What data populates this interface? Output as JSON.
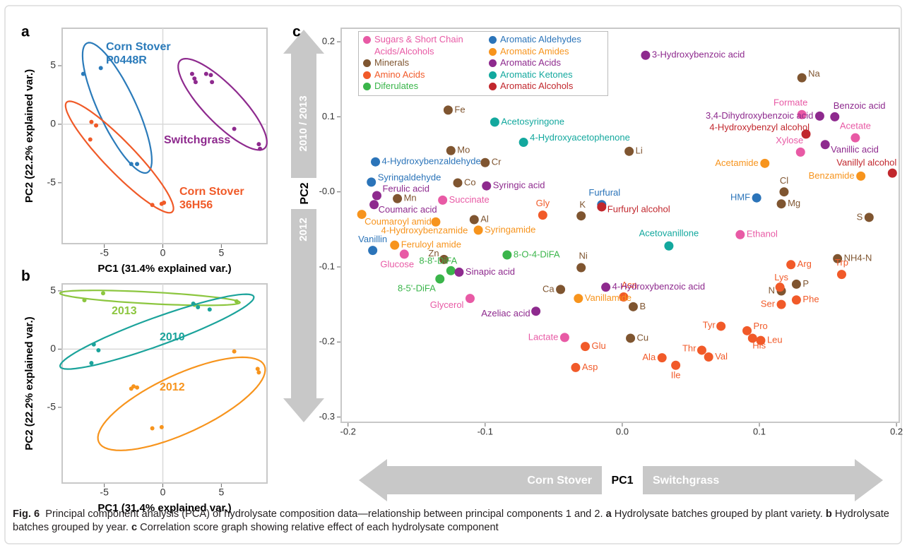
{
  "chart_data": [
    {
      "type": "scatter",
      "panel": "a",
      "xlabel": "PC1 (31.4% explained var.)",
      "ylabel": "PC2 (22.2% explained var.)",
      "xlim": [
        -8.6,
        8.9
      ],
      "ylim": [
        -10.2,
        8.2
      ],
      "xticks": [
        -5,
        0,
        5
      ],
      "yticks": [
        5,
        0,
        -5
      ],
      "zero_lines": true,
      "series": [
        {
          "name": "Corn Stover P0448R",
          "color": "#2b7bba",
          "x": [
            -6.8,
            -5.3,
            -2.7,
            -2.2
          ],
          "values": [
            4.3,
            4.8,
            -3.4,
            -3.4
          ],
          "ellipse": {
            "cx": -3.9,
            "cy": 1.4,
            "rx": 6.1,
            "ry": 1.6,
            "angle": -65
          }
        },
        {
          "name": "Corn Stover 36H56",
          "color": "#f05a28",
          "x": [
            -6.1,
            -5.7,
            -6.2,
            -0.9,
            -0.1,
            0.1
          ],
          "values": [
            0.2,
            -0.1,
            -1.3,
            -6.9,
            -6.8,
            -6.7
          ],
          "ellipse": {
            "cx": -3.7,
            "cy": -2.8,
            "rx": 6.5,
            "ry": 1.3,
            "angle": -46
          }
        },
        {
          "name": "Switchgrass",
          "color": "#8e2a8e",
          "x": [
            2.5,
            2.7,
            2.8,
            3.7,
            4.1,
            4.2,
            6.1,
            8.2,
            8.3
          ],
          "values": [
            4.3,
            3.9,
            3.6,
            4.3,
            4.2,
            3.6,
            -0.4,
            -1.7,
            -2.1
          ],
          "ellipse": {
            "cx": 5.1,
            "cy": 1.7,
            "rx": 5.2,
            "ry": 1.6,
            "angle": -46
          }
        }
      ]
    },
    {
      "type": "scatter",
      "panel": "b",
      "xlabel": "PC1 (31.4% explained var.)",
      "ylabel": "PC2 (22.2% explained var.)",
      "xlim": [
        -8.6,
        8.9
      ],
      "ylim": [
        -11.5,
        5.6
      ],
      "xticks": [
        -5,
        0,
        5
      ],
      "yticks": [
        5,
        0,
        -5
      ],
      "zero_lines": true,
      "series": [
        {
          "name": "2013",
          "color": "#8cc63f",
          "x": [
            -6.7,
            -5.1,
            2.7,
            6.3
          ],
          "values": [
            4.2,
            4.8,
            3.8,
            4.1
          ],
          "ellipse": {
            "cx": -1.1,
            "cy": 4.4,
            "rx": 7.7,
            "ry": 0.5,
            "angle": -3
          }
        },
        {
          "name": "2010",
          "color": "#1ba39b",
          "x": [
            -5.9,
            -5.5,
            -6.1,
            2.6,
            3.0,
            4.0
          ],
          "values": [
            0.4,
            -0.1,
            -1.2,
            3.9,
            3.6,
            3.4
          ],
          "ellipse": {
            "cx": -0.5,
            "cy": 1.5,
            "rx": 8.8,
            "ry": 1.2,
            "angle": 20
          }
        },
        {
          "name": "2012",
          "color": "#f7941d",
          "x": [
            -2.5,
            -2.7,
            -2.2,
            -0.9,
            -0.1,
            6.1,
            8.1,
            8.2
          ],
          "values": [
            -3.2,
            -3.4,
            -3.3,
            -6.8,
            -6.7,
            -0.2,
            -1.7,
            -2.0
          ],
          "ellipse": {
            "cx": 1.6,
            "cy": -4.7,
            "rx": 7.8,
            "ry": 2.5,
            "angle": 25
          }
        }
      ]
    },
    {
      "type": "scatter",
      "panel": "c",
      "xlabel": "PC1",
      "ylabel": "PC2",
      "x_arrow_labels": [
        "Corn Stover",
        "Switchgrass"
      ],
      "y_arrow_labels": [
        "2010 / 2013",
        "2012"
      ],
      "xlim": [
        -0.205,
        0.202
      ],
      "ylim": [
        -0.307,
        0.218
      ],
      "xticks": [
        -0.2,
        -0.1,
        {
          "value": 0,
          "label": "0.0"
        },
        0.1,
        0.2
      ],
      "yticks": [
        0.2,
        0.1,
        {
          "value": 0,
          "label": "-0.0"
        },
        -0.1,
        -0.2,
        -0.3
      ],
      "legend": "top-left",
      "series": [
        {
          "name": "Sugars & Short Chain Acids/Alcohols",
          "color": "#e85aa5",
          "labels": [
            "Formate",
            "Acetate",
            "Xylose",
            "Succinate",
            "Ethanol",
            "Glucose",
            "Glycerol",
            "Lactate"
          ],
          "x": [
            0.131,
            0.17,
            0.13,
            -0.131,
            0.086,
            -0.159,
            -0.111,
            -0.042
          ],
          "values": [
            0.103,
            0.072,
            0.053,
            -0.011,
            -0.057,
            -0.083,
            -0.142,
            -0.194
          ]
        },
        {
          "name": "Minerals",
          "color": "#7f5530",
          "labels": [
            "Na",
            "Fe",
            "Mo",
            "Li",
            "Cr",
            "Co",
            "Cl",
            "Mn",
            "Mg",
            "K",
            "Al",
            "S",
            "Zn",
            "Ni",
            "NH4-N",
            "Ca",
            "P",
            "N",
            "B",
            "Cu"
          ],
          "x": [
            0.131,
            -0.127,
            -0.125,
            0.005,
            -0.1,
            -0.12,
            0.118,
            -0.164,
            0.116,
            -0.03,
            -0.108,
            0.18,
            -0.13,
            -0.03,
            0.157,
            -0.045,
            0.127,
            0.116,
            0.008,
            0.006
          ],
          "values": [
            0.152,
            0.109,
            0.055,
            0.054,
            0.039,
            0.012,
            0.0,
            -0.009,
            -0.016,
            -0.032,
            -0.037,
            -0.034,
            -0.09,
            -0.101,
            -0.089,
            -0.13,
            -0.123,
            -0.132,
            -0.153,
            -0.195
          ]
        },
        {
          "name": "Amino Acids",
          "color": "#f15a29",
          "labels": [
            "Gly",
            "Arg",
            "Trp",
            "Lys",
            "Asn",
            "Ser",
            "Phe",
            "Tyr",
            "Pro",
            "His",
            "Leu",
            "Glu",
            "Thr",
            "Val",
            "Ala",
            "Ile",
            "Asp"
          ],
          "x": [
            -0.058,
            0.123,
            0.16,
            0.115,
            0.001,
            0.116,
            0.127,
            0.072,
            0.091,
            0.095,
            0.101,
            -0.027,
            0.058,
            0.063,
            0.029,
            0.039,
            -0.034
          ],
          "values": [
            -0.031,
            -0.097,
            -0.11,
            -0.127,
            -0.14,
            -0.15,
            -0.144,
            -0.179,
            -0.185,
            -0.195,
            -0.198,
            -0.206,
            -0.211,
            -0.22,
            -0.221,
            -0.231,
            -0.234
          ]
        },
        {
          "name": "Diferulates",
          "color": "#3ab54a",
          "labels": [
            "8-O-4-DiFA",
            "8-8'-DiFA",
            "8-5'-DiFA"
          ],
          "x": [
            -0.084,
            -0.125,
            -0.133
          ],
          "values": [
            -0.084,
            -0.105,
            -0.116
          ]
        },
        {
          "name": "Aromatic Aldehydes",
          "color": "#2b74b9",
          "labels": [
            "4-Hydroxybenzaldehyde",
            "Syringaldehyde",
            "Furfural",
            "HMF",
            "Vanillin"
          ],
          "x": [
            -0.18,
            -0.183,
            -0.015,
            0.098,
            -0.182
          ],
          "values": [
            0.04,
            0.013,
            -0.017,
            -0.008,
            -0.078
          ]
        },
        {
          "name": "Aromatic Amides",
          "color": "#f7941d",
          "labels": [
            "Acetamide",
            "Benzamide",
            "Coumaroyl amide",
            "Syringamide",
            "4-Hydroxybenzamide",
            "Feruloyl amide",
            "Vanillamide"
          ],
          "x": [
            0.104,
            0.174,
            -0.19,
            -0.105,
            -0.136,
            -0.166,
            -0.032
          ],
          "values": [
            0.038,
            0.021,
            -0.03,
            -0.051,
            -0.04,
            -0.071,
            -0.142
          ]
        },
        {
          "name": "Aromatic Acids",
          "color": "#8e2a8e",
          "labels": [
            "3-Hydroxybenzoic acid",
            "3,4-Dihydroxybenzoic acid",
            "Benzoic acid",
            "Vanillic acid",
            "Syringic acid",
            "Ferulic acid",
            "Coumaric acid",
            "Sinapic acid",
            "4-Hydroxybenzoic acid",
            "Azeliac acid"
          ],
          "x": [
            0.017,
            0.144,
            0.155,
            0.148,
            -0.099,
            -0.179,
            -0.181,
            -0.119,
            -0.012,
            -0.063
          ],
          "values": [
            0.182,
            0.101,
            0.1,
            0.063,
            0.008,
            -0.005,
            -0.017,
            -0.107,
            -0.127,
            -0.159
          ]
        },
        {
          "name": "Aromatic Ketones",
          "color": "#13a89e",
          "labels": [
            "Acetosyringone",
            "4-Hydroxyacetophenone",
            "Acetovanillone"
          ],
          "x": [
            -0.093,
            -0.072,
            0.034
          ],
          "values": [
            0.093,
            0.066,
            -0.072
          ]
        },
        {
          "name": "Aromatic Alcohols",
          "color": "#c1272d",
          "labels": [
            "4-Hydroxybenzyl alcohol",
            "Vanillyl alcohol",
            "Furfuryl alcohol"
          ],
          "x": [
            0.134,
            0.197,
            -0.015
          ],
          "values": [
            0.077,
            0.025,
            -0.02
          ]
        }
      ]
    }
  ],
  "caption": {
    "figure": "Fig. 6",
    "intro": "Principal component analysis (PCA) of hydrolysate composition data—relationship between principal components 1 and 2.",
    "parts": [
      {
        "label": "a",
        "text": "Hydrolysate batches grouped by plant variety."
      },
      {
        "label": "b",
        "text": "Hydrolysate batches grouped by year."
      },
      {
        "label": "c",
        "text": "Correlation score graph showing relative effect of each hydrolysate component"
      }
    ]
  }
}
